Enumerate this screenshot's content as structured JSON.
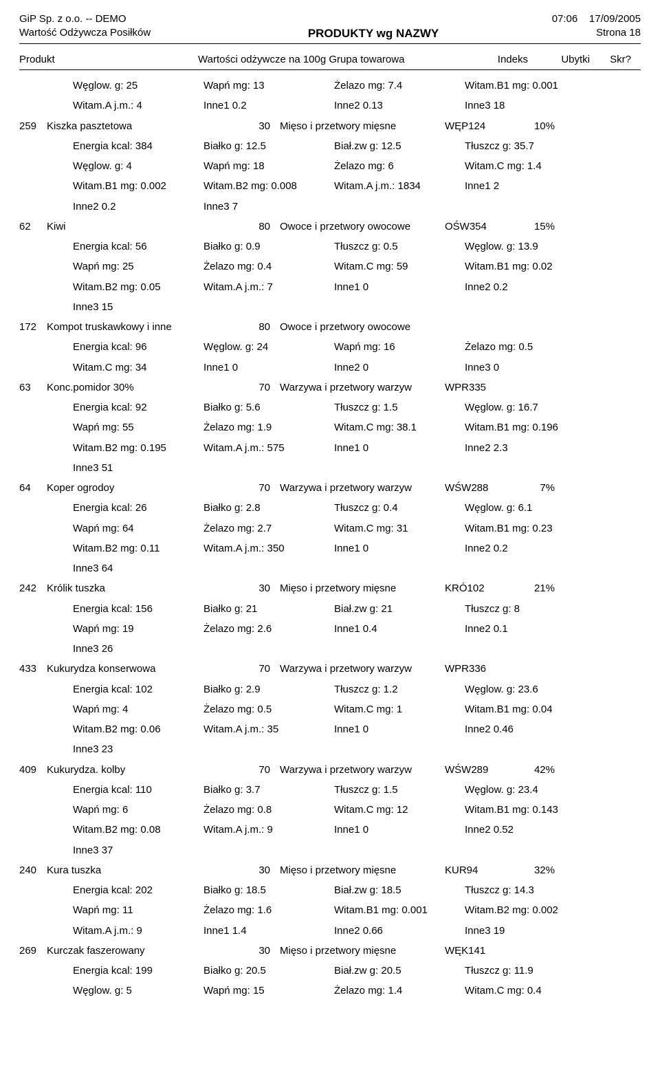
{
  "header": {
    "company": "GiP Sp. z o.o. -- DEMO",
    "time": "07:06",
    "date": "17/09/2005",
    "subtitle": "Wartość Odżywcza Posiłków",
    "title": "PRODUKTY wg NAZWY",
    "page": "Strona 18"
  },
  "columns": {
    "produkt": "Produkt",
    "grupa": "Wartości odżywcze na 100g        Grupa towarowa",
    "indeks": "Indeks",
    "ubytki": "Ubytki",
    "skr": "Skr?"
  },
  "lead_nutrients": [
    [
      "Węglow. g: 25",
      "Wapń mg: 13",
      "Żelazo mg: 7.4",
      "Witam.B1 mg: 0.001"
    ],
    [
      "Witam.A j.m.: 4",
      "Inne1 0.2",
      "Inne2 0.13",
      "Inne3 18"
    ]
  ],
  "products": [
    {
      "id": "259",
      "name": "Kiszka pasztetowa",
      "qty": "30",
      "group": "Mięso i przetwory mięsne",
      "index": "WĘP124",
      "ubytki": "10%",
      "rows": [
        [
          "Energia kcal: 384",
          "Białko g: 12.5",
          "Biał.zw g: 12.5",
          "Tłuszcz g: 35.7"
        ],
        [
          "Węglow. g: 4",
          "Wapń mg: 18",
          "Żelazo mg: 6",
          "Witam.C mg: 1.4"
        ],
        [
          "Witam.B1 mg: 0.002",
          "Witam.B2 mg: 0.008",
          "Witam.A j.m.: 1834",
          "Inne1 2"
        ],
        [
          "Inne2 0.2",
          "Inne3 7",
          "",
          ""
        ]
      ]
    },
    {
      "id": "62",
      "name": "Kiwi",
      "qty": "80",
      "group": "Owoce i przetwory owocowe",
      "index": "OŚW354",
      "ubytki": "15%",
      "rows": [
        [
          "Energia kcal: 56",
          "Białko g: 0.9",
          "Tłuszcz g: 0.5",
          "Węglow. g: 13.9"
        ],
        [
          "Wapń mg: 25",
          "Żelazo mg: 0.4",
          "Witam.C mg: 59",
          "Witam.B1 mg: 0.02"
        ],
        [
          "Witam.B2 mg: 0.05",
          "Witam.A j.m.: 7",
          "Inne1 0",
          "Inne2 0.2"
        ],
        [
          "Inne3 15",
          "",
          "",
          ""
        ]
      ]
    },
    {
      "id": "172",
      "name": "Kompot truskawkowy i inne",
      "qty": "80",
      "group": "Owoce i przetwory owocowe",
      "index": "",
      "ubytki": "",
      "rows": [
        [
          "Energia kcal: 96",
          "Węglow. g: 24",
          "Wapń mg: 16",
          "Żelazo mg: 0.5"
        ],
        [
          "Witam.C mg: 34",
          "Inne1 0",
          "Inne2 0",
          "Inne3 0"
        ]
      ]
    },
    {
      "id": "63",
      "name": "Konc.pomidor 30%",
      "qty": "70",
      "group": "Warzywa i przetwory warzyw",
      "index": "WPR335",
      "ubytki": "",
      "rows": [
        [
          "Energia kcal: 92",
          "Białko g: 5.6",
          "Tłuszcz g: 1.5",
          "Węglow. g: 16.7"
        ],
        [
          "Wapń mg: 55",
          "Żelazo mg: 1.9",
          "Witam.C mg: 38.1",
          "Witam.B1 mg: 0.196"
        ],
        [
          "Witam.B2 mg: 0.195",
          "Witam.A j.m.: 575",
          "Inne1 0",
          "Inne2 2.3"
        ],
        [
          "Inne3 51",
          "",
          "",
          ""
        ]
      ]
    },
    {
      "id": "64",
      "name": "Koper ogrodoy",
      "qty": "70",
      "group": "Warzywa i przetwory warzyw",
      "index": "WŚW288",
      "ubytki": "7%",
      "rows": [
        [
          "Energia kcal: 26",
          "Białko g: 2.8",
          "Tłuszcz g: 0.4",
          "Węglow. g: 6.1"
        ],
        [
          "Wapń mg: 64",
          "Żelazo mg: 2.7",
          "Witam.C mg: 31",
          "Witam.B1 mg: 0.23"
        ],
        [
          "Witam.B2 mg: 0.11",
          "Witam.A j.m.: 350",
          "Inne1 0",
          "Inne2 0.2"
        ],
        [
          "Inne3 64",
          "",
          "",
          ""
        ]
      ]
    },
    {
      "id": "242",
      "name": "Królik tuszka",
      "qty": "30",
      "group": "Mięso i przetwory mięsne",
      "index": "KRÓ102",
      "ubytki": "21%",
      "rows": [
        [
          "Energia kcal: 156",
          "Białko g: 21",
          "Biał.zw g: 21",
          "Tłuszcz g: 8"
        ],
        [
          "Wapń mg: 19",
          "Żelazo mg: 2.6",
          "Inne1 0.4",
          "Inne2 0.1"
        ],
        [
          "Inne3 26",
          "",
          "",
          ""
        ]
      ]
    },
    {
      "id": "433",
      "name": "Kukurydza konserwowa",
      "qty": "70",
      "group": "Warzywa i przetwory warzyw",
      "index": "WPR336",
      "ubytki": "",
      "rows": [
        [
          "Energia kcal: 102",
          "Białko g: 2.9",
          "Tłuszcz g: 1.2",
          "Węglow. g: 23.6"
        ],
        [
          "Wapń mg: 4",
          "Żelazo mg: 0.5",
          "Witam.C mg: 1",
          "Witam.B1 mg: 0.04"
        ],
        [
          "Witam.B2 mg: 0.06",
          "Witam.A j.m.: 35",
          "Inne1 0",
          "Inne2 0.46"
        ],
        [
          "Inne3 23",
          "",
          "",
          ""
        ]
      ]
    },
    {
      "id": "409",
      "name": "Kukurydza. kolby",
      "qty": "70",
      "group": "Warzywa i przetwory warzyw",
      "index": "WŚW289",
      "ubytki": "42%",
      "rows": [
        [
          "Energia kcal: 110",
          "Białko g: 3.7",
          "Tłuszcz g: 1.5",
          "Węglow. g: 23.4"
        ],
        [
          "Wapń mg: 6",
          "Żelazo mg: 0.8",
          "Witam.C mg: 12",
          "Witam.B1 mg: 0.143"
        ],
        [
          "Witam.B2 mg: 0.08",
          "Witam.A j.m.: 9",
          "Inne1 0",
          "Inne2 0.52"
        ],
        [
          "Inne3 37",
          "",
          "",
          ""
        ]
      ]
    },
    {
      "id": "240",
      "name": "Kura tuszka",
      "qty": "30",
      "group": "Mięso i przetwory mięsne",
      "index": "KUR94",
      "ubytki": "32%",
      "rows": [
        [
          "Energia kcal: 202",
          "Białko g: 18.5",
          "Biał.zw g: 18.5",
          "Tłuszcz g: 14.3"
        ],
        [
          "Wapń mg: 11",
          "Żelazo mg: 1.6",
          "Witam.B1 mg: 0.001",
          "Witam.B2 mg: 0.002"
        ],
        [
          "Witam.A j.m.: 9",
          "Inne1 1.4",
          "Inne2 0.66",
          "Inne3 19"
        ]
      ]
    },
    {
      "id": "269",
      "name": "Kurczak faszerowany",
      "qty": "30",
      "group": "Mięso i przetwory mięsne",
      "index": "WĘK141",
      "ubytki": "",
      "rows": [
        [
          "Energia kcal: 199",
          "Białko g: 20.5",
          "Biał.zw g: 20.5",
          "Tłuszcz g: 11.9"
        ],
        [
          "Węglow. g: 5",
          "Wapń mg: 15",
          "Żelazo mg: 1.4",
          "Witam.C mg: 0.4"
        ]
      ]
    }
  ]
}
